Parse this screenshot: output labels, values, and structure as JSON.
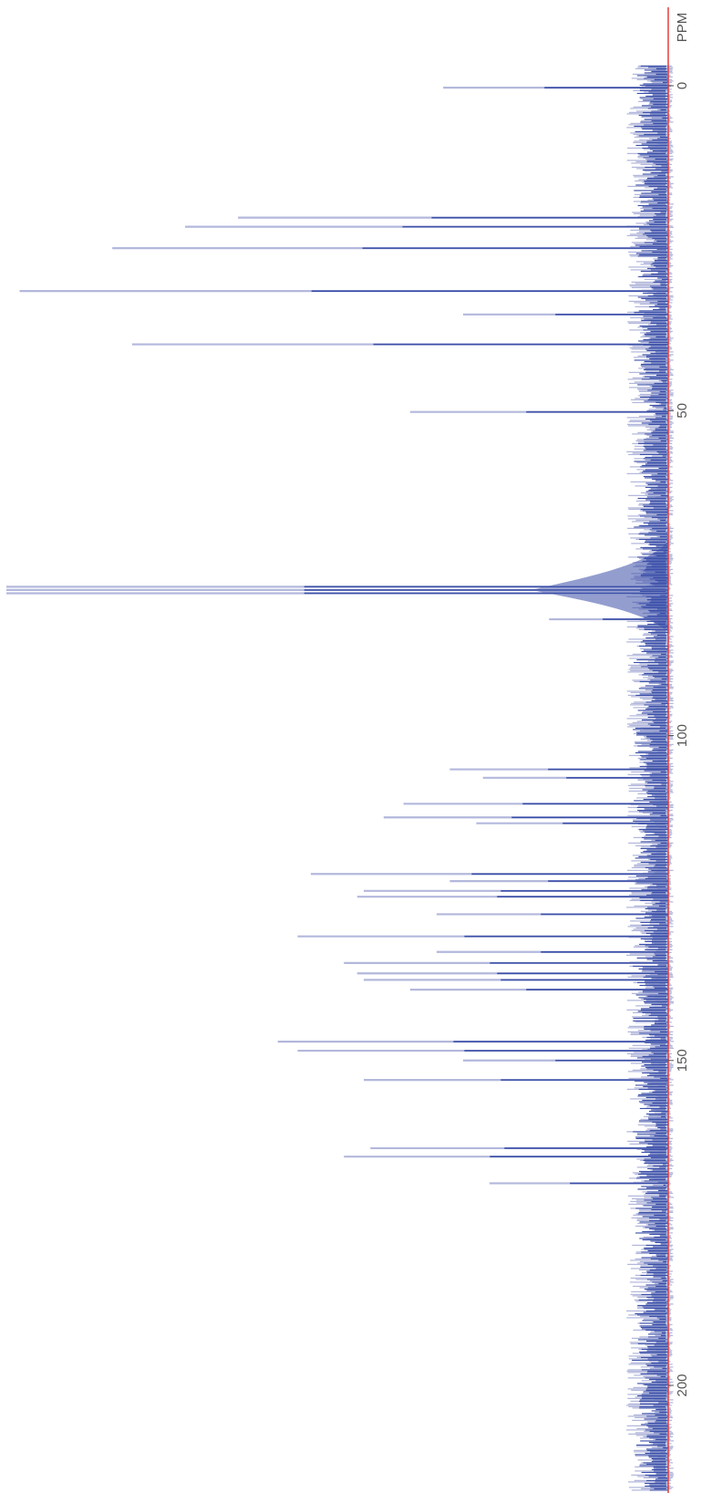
{
  "chart_data": {
    "type": "line",
    "orientation": "rotated-90",
    "xlabel": "PPM",
    "xlim": [
      -5,
      205
    ],
    "x_ticks": [
      {
        "value": 0,
        "label": "0"
      },
      {
        "value": 50,
        "label": "50"
      },
      {
        "value": 100,
        "label": "100"
      },
      {
        "value": 150,
        "label": "150"
      },
      {
        "value": 200,
        "label": "200"
      }
    ],
    "ylim": [
      0,
      1
    ],
    "grid": false,
    "colors": {
      "spectrum": "#3b4fa8",
      "spectrum_light": "#b3b8dc",
      "baseline": "#e53030",
      "axis_text": "#555555"
    },
    "series": [
      {
        "peaks": [
          {
            "ppm": 0.3,
            "intensity": 0.34
          },
          {
            "ppm": 20.3,
            "intensity": 0.65
          },
          {
            "ppm": 21.7,
            "intensity": 0.73
          },
          {
            "ppm": 25.0,
            "intensity": 0.84
          },
          {
            "ppm": 31.6,
            "intensity": 0.98
          },
          {
            "ppm": 35.2,
            "intensity": 0.31
          },
          {
            "ppm": 39.8,
            "intensity": 0.81
          },
          {
            "ppm": 50.2,
            "intensity": 0.39
          },
          {
            "ppm": 77.1,
            "intensity": 1.0
          },
          {
            "ppm": 77.6,
            "intensity": 1.0
          },
          {
            "ppm": 78.1,
            "intensity": 1.0
          },
          {
            "ppm": 82.1,
            "intensity": 0.18
          },
          {
            "ppm": 105.2,
            "intensity": 0.33
          },
          {
            "ppm": 106.5,
            "intensity": 0.28
          },
          {
            "ppm": 110.5,
            "intensity": 0.4
          },
          {
            "ppm": 112.6,
            "intensity": 0.43
          },
          {
            "ppm": 113.5,
            "intensity": 0.29
          },
          {
            "ppm": 121.3,
            "intensity": 0.54
          },
          {
            "ppm": 122.4,
            "intensity": 0.33
          },
          {
            "ppm": 123.9,
            "intensity": 0.46
          },
          {
            "ppm": 124.8,
            "intensity": 0.47
          },
          {
            "ppm": 127.5,
            "intensity": 0.35
          },
          {
            "ppm": 130.9,
            "intensity": 0.56
          },
          {
            "ppm": 133.3,
            "intensity": 0.35
          },
          {
            "ppm": 135.0,
            "intensity": 0.49
          },
          {
            "ppm": 136.6,
            "intensity": 0.47
          },
          {
            "ppm": 137.6,
            "intensity": 0.46
          },
          {
            "ppm": 139.1,
            "intensity": 0.39
          },
          {
            "ppm": 147.1,
            "intensity": 0.59
          },
          {
            "ppm": 148.5,
            "intensity": 0.56
          },
          {
            "ppm": 150.0,
            "intensity": 0.31
          },
          {
            "ppm": 153.0,
            "intensity": 0.46
          },
          {
            "ppm": 163.5,
            "intensity": 0.45
          },
          {
            "ppm": 164.8,
            "intensity": 0.49
          },
          {
            "ppm": 168.9,
            "intensity": 0.27
          }
        ]
      }
    ]
  }
}
